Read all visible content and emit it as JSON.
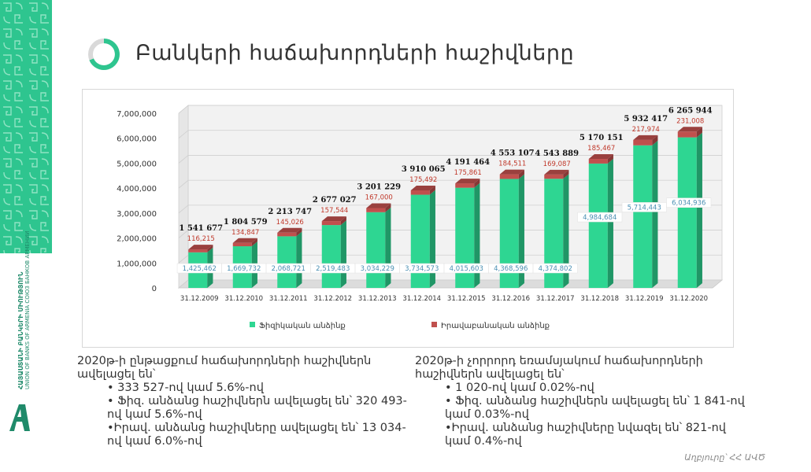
{
  "slide": {
    "title": "Բանկերի հաճախորդների հաշիվները",
    "footer": "Աղբյուրը՝ ՀՀ ԱՎԾ"
  },
  "logo": {
    "text_line1": "ՀԱՅԱՍՏԱՆԻ ԲԱՆԿԵՐԻ ՄԻՈՒԹՅՈՒՆ",
    "text_line2": "UNION OF BANKS OF ARMENIA   СОЮЗ БАНКОВ АРМЕНИИ"
  },
  "left_col": {
    "intro": "2020թ-ի ընթացքում հաճախորդների հաշիվներն ավելացել են՝",
    "bullets": [
      "• 333 527-ով կամ 5.6%-ով",
      "• Ֆիզ. անձանց հաշիվներն ավելացել են՝ 320 493-ով կամ 5.6%-ով",
      "•Իրավ. անձանց հաշիվները ավելացել են՝ 13 034-ով կամ 6.0%-ով"
    ]
  },
  "right_col": {
    "intro": "2020թ-ի չորրորդ եռամսյակում հաճախորդների հաշիվներն ավելացել են՝",
    "bullets": [
      "• 1 020-ով կամ 0.02%-ով",
      "• Ֆիզ. անձանց հաշիվներն ավելացել են՝ 1 841-ով կամ 0.03%-ով",
      "•Իրավ. անձանց հաշիվները նվազել են՝ 821-ով կամ 0.4%-ով"
    ]
  },
  "colors": {
    "brand": "#2ec58f",
    "individuals": "#2ed692",
    "legal": "#c0504d"
  },
  "chart_data": {
    "type": "bar",
    "stacked": true,
    "categories": [
      "31.12.2009",
      "31.12.2010",
      "31.12.2011",
      "31.12.2012",
      "31.12.2013",
      "31.12.2014",
      "31.12.2015",
      "31.12.2016",
      "31.12.2017",
      "31.12.2018",
      "31.12.2019",
      "31.12.2020"
    ],
    "series": [
      {
        "name": "Ֆիզիկական անձինք",
        "values": [
          1425462,
          1669732,
          2068721,
          2519483,
          3034229,
          3734573,
          4015603,
          4368596,
          4374802,
          4984684,
          5714443,
          6034936
        ],
        "labels": [
          "1,425,462",
          "1,669,732",
          "2,068,721",
          "2,519,483",
          "3,034,229",
          "3,734,573",
          "4,015,603",
          "4,368,596",
          "4,374,802",
          "4,984,684",
          "5,714,443",
          "6,034,936"
        ]
      },
      {
        "name": "Իրավաբանական անձինք",
        "values": [
          116215,
          134847,
          145026,
          157544,
          167000,
          175492,
          175861,
          184511,
          169087,
          185467,
          217974,
          231008
        ],
        "labels": [
          "116,215",
          "134,847",
          "145,026",
          "157,544",
          "167,000",
          "175,492",
          "175,861",
          "184,511",
          "169,087",
          "185,467",
          "217,974",
          "231,008"
        ]
      }
    ],
    "totals": [
      1541677,
      1804579,
      2213747,
      2677027,
      3201229,
      3910065,
      4191464,
      4553107,
      4543889,
      5170151,
      5932417,
      6265944
    ],
    "total_labels": [
      "1 541 677",
      "1 804 579",
      "2 213 747",
      "2 677 027",
      "3 201 229",
      "3 910 065",
      "4 191 464",
      "4 553 107",
      "4 543 889",
      "5 170 151",
      "5 932 417",
      "6 265 944"
    ],
    "ylim": [
      0,
      7000000
    ],
    "yticks": [
      "0",
      "1,000,000",
      "2,000,000",
      "3,000,000",
      "4,000,000",
      "5,000,000",
      "6,000,000",
      "7,000,000"
    ],
    "grid": true,
    "legend": "bottom"
  }
}
